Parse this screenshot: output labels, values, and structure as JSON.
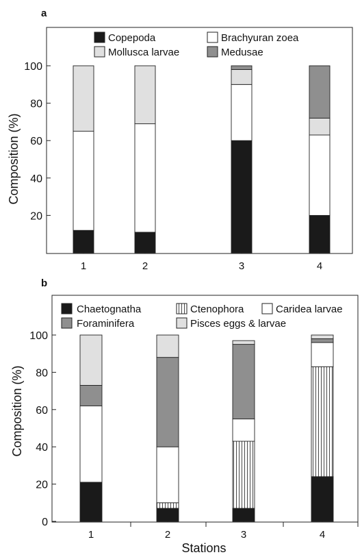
{
  "chart_data": [
    {
      "type": "bar",
      "stacked": true,
      "panel_label": "a",
      "ylabel": "Composition (%)",
      "xlabel": "",
      "ylim": [
        0,
        100
      ],
      "yticks": [
        20,
        40,
        60,
        80,
        100
      ],
      "categories": [
        "1",
        "2",
        "3",
        "4"
      ],
      "legend_placement": "top",
      "series": [
        {
          "name": "Copepoda",
          "values": [
            12,
            11,
            60,
            20
          ],
          "color": "#1a1a1a",
          "pattern": "solid"
        },
        {
          "name": "Brachyuran zoea",
          "values": [
            53,
            58,
            30,
            43
          ],
          "color": "#ffffff",
          "pattern": "solid"
        },
        {
          "name": "Mollusca larvae",
          "values": [
            35,
            31,
            8,
            9
          ],
          "color": "#e0e0e0",
          "pattern": "solid"
        },
        {
          "name": "Medusae",
          "values": [
            0,
            0,
            2,
            28
          ],
          "color": "#8f8f8f",
          "pattern": "solid"
        }
      ]
    },
    {
      "type": "bar",
      "stacked": true,
      "panel_label": "b",
      "ylabel": "Composition (%)",
      "xlabel": "Stations",
      "ylim": [
        0,
        100
      ],
      "yticks": [
        0,
        20,
        40,
        60,
        80,
        100
      ],
      "categories": [
        "1",
        "2",
        "3",
        "4"
      ],
      "legend_placement": "top",
      "series": [
        {
          "name": "Chaetognatha",
          "values": [
            21,
            7,
            7,
            24
          ],
          "color": "#1a1a1a",
          "pattern": "solid"
        },
        {
          "name": "Ctenophora",
          "values": [
            0,
            3,
            36,
            59
          ],
          "color": "#ffffff",
          "pattern": "vertical-lines"
        },
        {
          "name": "Caridea larvae",
          "values": [
            41,
            30,
            12,
            13
          ],
          "color": "#ffffff",
          "pattern": "solid"
        },
        {
          "name": "Foraminifera",
          "values": [
            11,
            48,
            40,
            2
          ],
          "color": "#8f8f8f",
          "pattern": "solid"
        },
        {
          "name": "Pisces eggs & larvae",
          "values": [
            27,
            12,
            2,
            2
          ],
          "color": "#e0e0e0",
          "pattern": "solid"
        }
      ]
    }
  ]
}
